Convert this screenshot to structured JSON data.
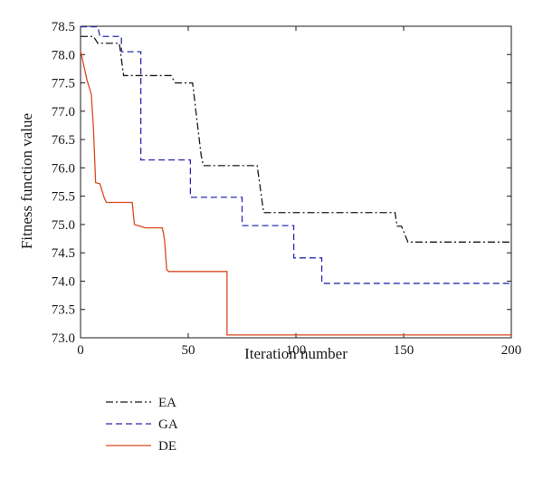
{
  "chart_data": {
    "type": "line",
    "title": "",
    "xlabel": "Iteration number",
    "ylabel": "Fitness function value",
    "xlim": [
      0,
      200
    ],
    "ylim": [
      73.0,
      78.5
    ],
    "x_ticks": [
      "0",
      "50",
      "100",
      "150",
      "200"
    ],
    "y_ticks": [
      "73.0",
      "73.5",
      "74.0",
      "74.5",
      "75.0",
      "75.5",
      "76.0",
      "76.5",
      "77.0",
      "77.5",
      "78.0",
      "78.5"
    ],
    "grid": false,
    "legend_position": "below-left",
    "series": [
      {
        "name": "EA",
        "color": "#1a1a1a",
        "dash": "dash-dot",
        "points": [
          [
            0,
            78.32
          ],
          [
            6,
            78.32
          ],
          [
            8,
            78.2
          ],
          [
            18,
            78.2
          ],
          [
            20,
            77.63
          ],
          [
            42,
            77.63
          ],
          [
            44,
            77.5
          ],
          [
            52,
            77.5
          ],
          [
            56,
            76.22
          ],
          [
            57,
            76.04
          ],
          [
            82,
            76.04
          ],
          [
            85,
            75.21
          ],
          [
            146,
            75.21
          ],
          [
            147,
            74.97
          ],
          [
            149,
            74.97
          ],
          [
            152,
            74.69
          ],
          [
            200,
            74.69
          ]
        ]
      },
      {
        "name": "GA",
        "color": "#2b2bb0",
        "dash": "dashed",
        "points": [
          [
            0,
            78.49
          ],
          [
            8,
            78.49
          ],
          [
            9,
            78.32
          ],
          [
            19,
            78.32
          ],
          [
            19,
            78.05
          ],
          [
            28,
            78.05
          ],
          [
            28,
            76.14
          ],
          [
            51,
            76.14
          ],
          [
            51,
            75.48
          ],
          [
            75,
            75.48
          ],
          [
            75,
            74.98
          ],
          [
            99,
            74.98
          ],
          [
            99,
            74.41
          ],
          [
            112,
            74.41
          ],
          [
            112,
            73.96
          ],
          [
            200,
            73.96
          ]
        ]
      },
      {
        "name": "DE",
        "color": "#d94a1e",
        "dash": "solid",
        "points": [
          [
            0,
            78.07
          ],
          [
            3,
            77.55
          ],
          [
            5,
            77.3
          ],
          [
            6,
            76.7
          ],
          [
            7,
            75.74
          ],
          [
            9,
            75.72
          ],
          [
            11,
            75.47
          ],
          [
            12,
            75.39
          ],
          [
            24,
            75.39
          ],
          [
            25,
            75.0
          ],
          [
            30,
            74.94
          ],
          [
            38,
            74.94
          ],
          [
            39,
            74.73
          ],
          [
            40,
            74.2
          ],
          [
            41,
            74.17
          ],
          [
            68,
            74.17
          ],
          [
            68,
            73.05
          ],
          [
            200,
            73.05
          ]
        ]
      }
    ]
  }
}
